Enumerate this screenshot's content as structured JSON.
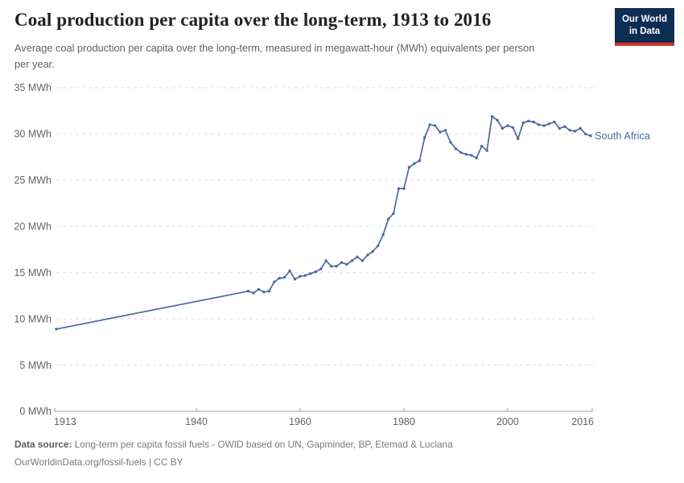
{
  "header": {
    "title": "Coal production per capita over the long-term, 1913 to 2016",
    "subtitle": "Average coal production per capita over the long-term, measured in megawatt-hour (MWh) equivalents per person per year."
  },
  "logo": {
    "line1": "Our World",
    "line2": "in Data",
    "bg_color": "#0d2e52",
    "bar_color": "#d2332b"
  },
  "chart_data": {
    "type": "line",
    "title": "Coal production per capita over the long-term, 1913 to 2016",
    "unit": "MWh",
    "xlabel": "",
    "ylabel": "MWh",
    "xlim": [
      1913,
      2016
    ],
    "ylim": [
      0,
      35
    ],
    "grid": "dashed-horizontal",
    "grid_color": "#dddddd",
    "axis_color": "#a0a0a0",
    "tick_label_color": "#636363",
    "xticks": [
      1913,
      1940,
      1960,
      1980,
      2000,
      2016
    ],
    "yticks": [
      {
        "value": 0,
        "label": "0 MWh"
      },
      {
        "value": 5,
        "label": "5 MWh"
      },
      {
        "value": 10,
        "label": "10 MWh"
      },
      {
        "value": 15,
        "label": "15 MWh"
      },
      {
        "value": 20,
        "label": "20 MWh"
      },
      {
        "value": 25,
        "label": "25 MWh"
      },
      {
        "value": 30,
        "label": "30 MWh"
      },
      {
        "value": 35,
        "label": "35 MWh"
      }
    ],
    "series": [
      {
        "name": "South Africa",
        "color": "#4c6a9f",
        "x": [
          1913,
          1950,
          1951,
          1952,
          1953,
          1954,
          1955,
          1956,
          1957,
          1958,
          1959,
          1960,
          1961,
          1962,
          1963,
          1964,
          1965,
          1966,
          1967,
          1968,
          1969,
          1970,
          1971,
          1972,
          1973,
          1974,
          1975,
          1976,
          1977,
          1978,
          1979,
          1980,
          1981,
          1982,
          1983,
          1984,
          1985,
          1986,
          1987,
          1988,
          1989,
          1990,
          1991,
          1992,
          1993,
          1994,
          1995,
          1996,
          1997,
          1998,
          1999,
          2000,
          2001,
          2002,
          2003,
          2004,
          2005,
          2006,
          2007,
          2008,
          2009,
          2010,
          2011,
          2012,
          2013,
          2014,
          2015,
          2016
        ],
        "values": [
          8.9,
          13.0,
          12.8,
          13.2,
          12.9,
          13.0,
          14.0,
          14.4,
          14.5,
          15.2,
          14.3,
          14.6,
          14.7,
          14.9,
          15.1,
          15.4,
          16.3,
          15.7,
          15.7,
          16.1,
          15.9,
          16.3,
          16.7,
          16.3,
          16.9,
          17.3,
          17.9,
          19.1,
          20.8,
          21.4,
          24.1,
          24.1,
          26.4,
          26.8,
          27.1,
          29.6,
          31.0,
          30.9,
          30.2,
          30.4,
          29.1,
          28.4,
          28.0,
          27.8,
          27.7,
          27.4,
          28.7,
          28.2,
          31.9,
          31.5,
          30.6,
          30.9,
          30.7,
          29.5,
          31.2,
          31.4,
          31.3,
          31.0,
          30.9,
          31.1,
          31.3,
          30.6,
          30.8,
          30.4,
          30.3,
          30.6,
          30.0,
          29.8
        ]
      }
    ],
    "end_label": "South Africa"
  },
  "footer": {
    "source_label": "Data source:",
    "source_text": "Long-term per capita fossil fuels - OWID based on UN, Gapminder, BP, Etemad & Luciana",
    "note": "OurWorldinData.org/fossil-fuels | CC BY"
  }
}
